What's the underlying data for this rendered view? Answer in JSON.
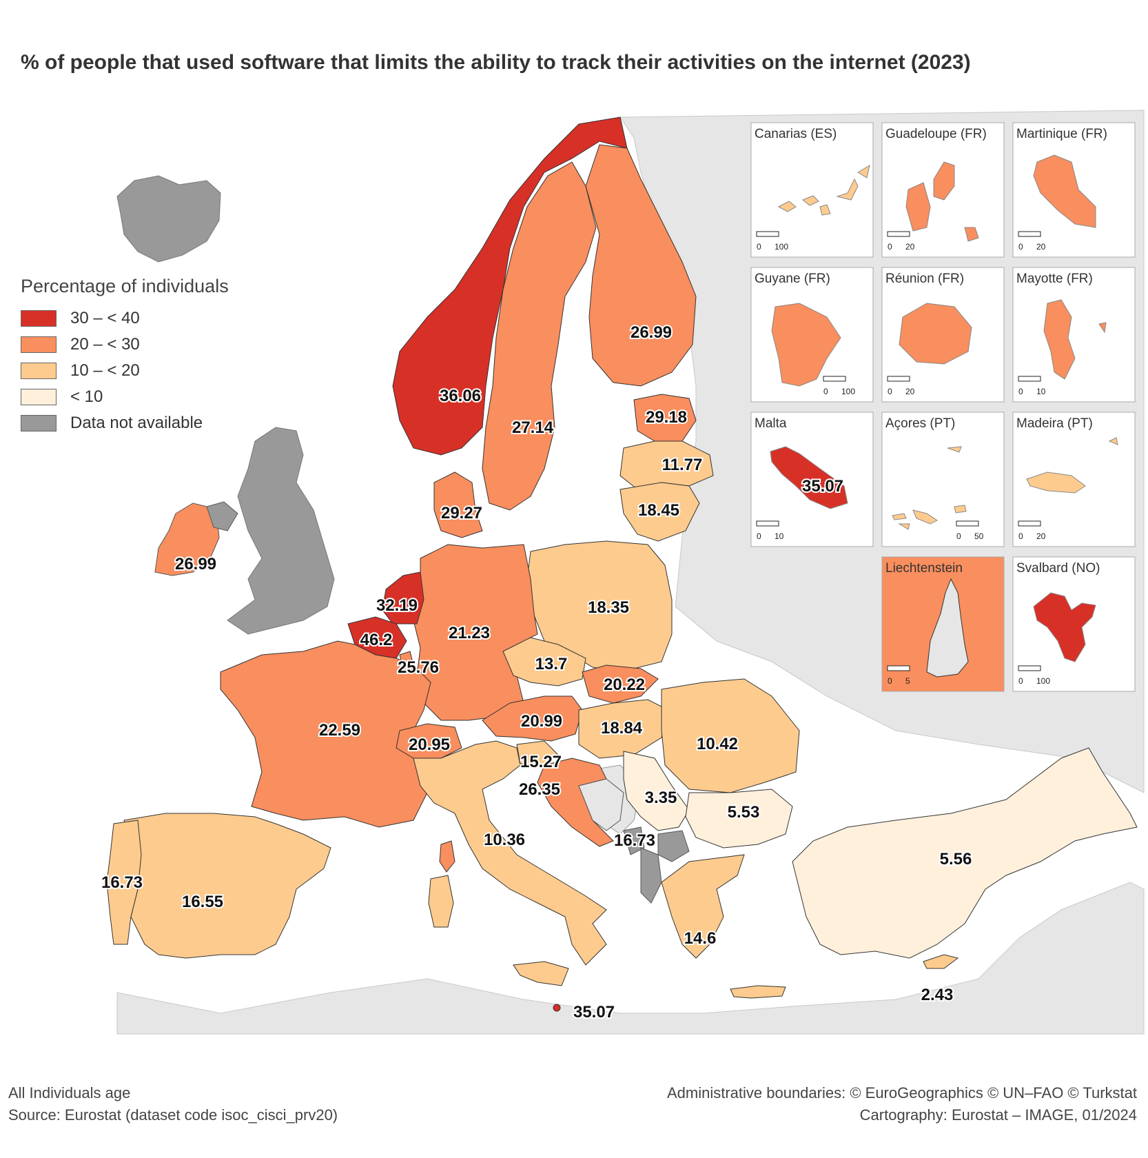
{
  "title": "% of people that used software that limits the ability to track their activities on the internet (2023)",
  "legend": {
    "title": "Percentage of individuals",
    "items": [
      {
        "label": "30 – < 40",
        "color": "#d73027"
      },
      {
        "label": "20 – < 30",
        "color": "#f98e5e"
      },
      {
        "label": "10 – < 20",
        "color": "#fdcb8e"
      },
      {
        "label": "< 10",
        "color": "#fff0dc"
      },
      {
        "label": "Data not available",
        "color": "#999999"
      }
    ]
  },
  "country_values": [
    {
      "value": "36.06"
    },
    {
      "value": "27.14"
    },
    {
      "value": "26.99"
    },
    {
      "value": "29.18"
    },
    {
      "value": "11.77"
    },
    {
      "value": "18.45"
    },
    {
      "value": "29.27"
    },
    {
      "value": "26.99"
    },
    {
      "value": "32.19"
    },
    {
      "value": "46.2"
    },
    {
      "value": "25.76"
    },
    {
      "value": "21.23"
    },
    {
      "value": "18.35"
    },
    {
      "value": "13.7"
    },
    {
      "value": "20.22"
    },
    {
      "value": "20.99"
    },
    {
      "value": "18.84"
    },
    {
      "value": "10.42"
    },
    {
      "value": "22.59"
    },
    {
      "value": "20.95"
    },
    {
      "value": "15.27"
    },
    {
      "value": "26.35"
    },
    {
      "value": "3.35"
    },
    {
      "value": "5.53"
    },
    {
      "value": "10.36"
    },
    {
      "value": "16.73"
    },
    {
      "value": "5.56"
    },
    {
      "value": "16.73"
    },
    {
      "value": "16.55"
    },
    {
      "value": "14.6"
    },
    {
      "value": "35.07"
    },
    {
      "value": "2.43"
    }
  ],
  "insets": [
    {
      "name": "Canarias (ES)",
      "scale_min": "0",
      "scale_max": "100"
    },
    {
      "name": "Guadeloupe (FR)",
      "scale_min": "0",
      "scale_max": "20"
    },
    {
      "name": "Martinique (FR)",
      "scale_min": "0",
      "scale_max": "20"
    },
    {
      "name": "Guyane (FR)",
      "scale_min": "0",
      "scale_max": "100"
    },
    {
      "name": "Réunion (FR)",
      "scale_min": "0",
      "scale_max": "20"
    },
    {
      "name": "Mayotte (FR)",
      "scale_min": "0",
      "scale_max": "10"
    },
    {
      "name": "Malta",
      "scale_min": "0",
      "scale_max": "10",
      "value": "35.07"
    },
    {
      "name": "Açores (PT)",
      "scale_min": "0",
      "scale_max": "50"
    },
    {
      "name": "Madeira (PT)",
      "scale_min": "0",
      "scale_max": "20"
    },
    {
      "name": "Liechtenstein",
      "scale_min": "0",
      "scale_max": "5"
    },
    {
      "name": "Svalbard (NO)",
      "scale_min": "0",
      "scale_max": "100"
    }
  ],
  "footer": {
    "left_line1": "All Individuals age",
    "left_line2": "Source: Eurostat (dataset code isoc_cisci_prv20)",
    "right_line1": "Administrative boundaries: © EuroGeographics © UN–FAO © Turkstat",
    "right_line2": "Cartography: Eurostat – IMAGE, 01/2024"
  }
}
